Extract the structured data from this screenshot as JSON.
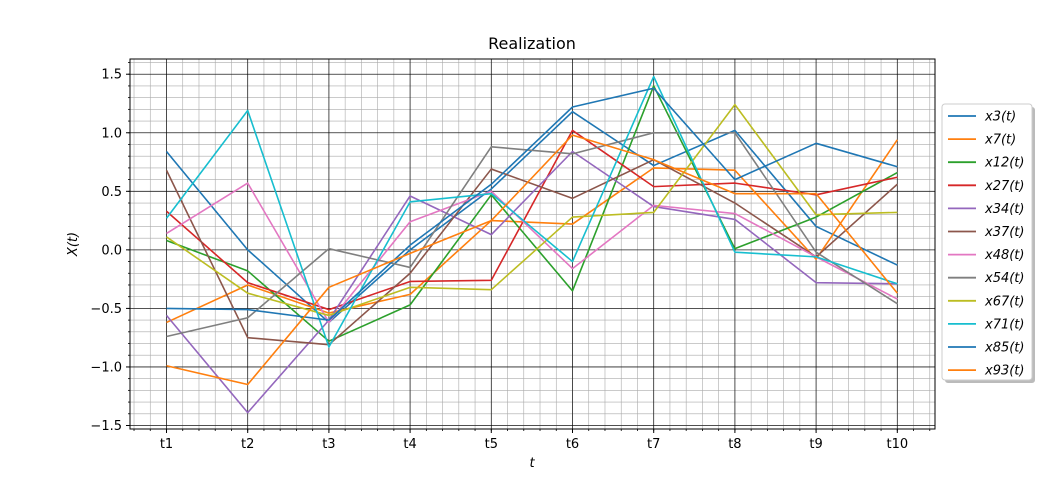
{
  "chart_data": {
    "type": "line",
    "title": "Realization",
    "xlabel": "t",
    "ylabel": "X(t)",
    "categories": [
      "t1",
      "t2",
      "t3",
      "t4",
      "t5",
      "t6",
      "t7",
      "t8",
      "t9",
      "t10"
    ],
    "ylim": [
      -1.53,
      1.63
    ],
    "yticks": [
      -1.5,
      -1.0,
      -0.5,
      0.0,
      0.5,
      1.0,
      1.5
    ],
    "ytick_labels": [
      "−1.5",
      "−1.0",
      "−0.5",
      "0.0",
      "0.5",
      "1.0",
      "1.5"
    ],
    "grid": true,
    "minor_grid": true,
    "legend_position": "right",
    "series": [
      {
        "name": "x3(t)",
        "color": "#1f77b4",
        "values": [
          0.84,
          0.0,
          -0.62,
          0.0,
          0.52,
          1.18,
          0.72,
          1.02,
          0.2,
          -0.13
        ]
      },
      {
        "name": "x7(t)",
        "color": "#ff7f0e",
        "values": [
          -0.62,
          -0.3,
          -0.54,
          -0.38,
          0.25,
          0.22,
          0.7,
          0.68,
          -0.08,
          0.94
        ]
      },
      {
        "name": "x12(t)",
        "color": "#2ca02c",
        "values": [
          0.08,
          -0.18,
          -0.78,
          -0.47,
          0.47,
          -0.35,
          1.4,
          0.01,
          0.28,
          0.66
        ]
      },
      {
        "name": "x27(t)",
        "color": "#d62728",
        "values": [
          0.33,
          -0.28,
          -0.51,
          -0.27,
          -0.26,
          1.02,
          0.54,
          0.57,
          0.47,
          0.62
        ]
      },
      {
        "name": "x34(t)",
        "color": "#9467bd",
        "values": [
          -0.56,
          -1.39,
          -0.6,
          0.46,
          0.13,
          0.84,
          0.37,
          0.26,
          -0.28,
          -0.29
        ]
      },
      {
        "name": "x37(t)",
        "color": "#8c564b",
        "values": [
          0.68,
          -0.75,
          -0.81,
          -0.2,
          0.69,
          0.44,
          0.77,
          0.4,
          -0.06,
          0.56
        ]
      },
      {
        "name": "x48(t)",
        "color": "#e377c2",
        "values": [
          0.14,
          0.57,
          -0.62,
          0.24,
          0.5,
          -0.16,
          0.38,
          0.31,
          -0.06,
          -0.42
        ]
      },
      {
        "name": "x54(t)",
        "color": "#7f7f7f",
        "values": [
          -0.74,
          -0.58,
          0.01,
          -0.15,
          0.88,
          0.82,
          1.0,
          1.0,
          -0.02,
          -0.46
        ]
      },
      {
        "name": "x67(t)",
        "color": "#bcbd22",
        "values": [
          0.11,
          -0.37,
          -0.56,
          -0.32,
          -0.34,
          0.28,
          0.32,
          1.24,
          0.3,
          0.32
        ]
      },
      {
        "name": "x71(t)",
        "color": "#17becf",
        "values": [
          0.27,
          1.19,
          -0.83,
          0.41,
          0.48,
          -0.1,
          1.48,
          -0.02,
          -0.06,
          -0.29
        ]
      },
      {
        "name": "x85(t)",
        "color": "#1f77b4",
        "values": [
          -0.5,
          -0.51,
          -0.6,
          0.04,
          0.56,
          1.22,
          1.38,
          0.6,
          0.91,
          0.71
        ]
      },
      {
        "name": "x93(t)",
        "color": "#ff7f0e",
        "values": [
          -0.99,
          -1.15,
          -0.32,
          -0.03,
          0.25,
          0.98,
          0.77,
          0.48,
          0.48,
          -0.37
        ]
      }
    ]
  }
}
